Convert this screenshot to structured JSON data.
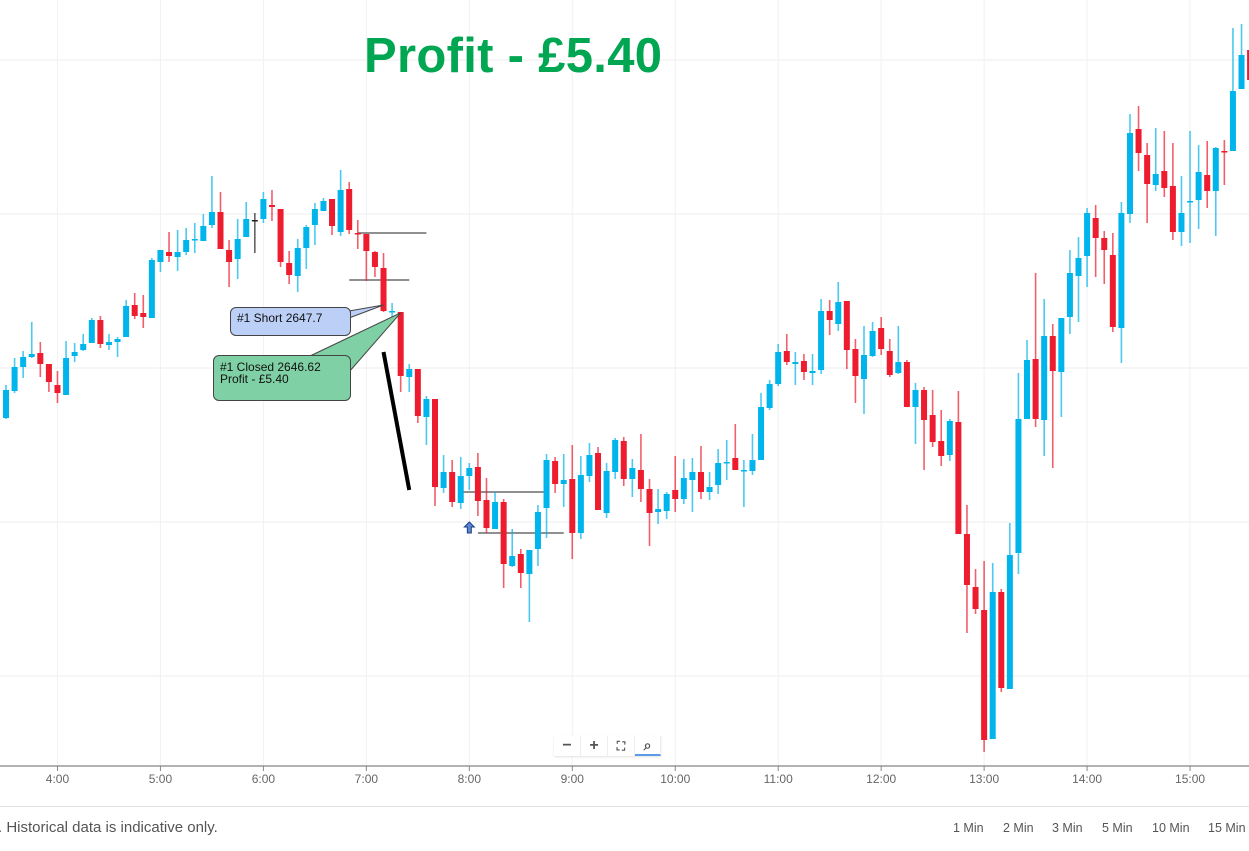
{
  "headline": "Profit - £5.40",
  "colors": {
    "up": "#00b4ec",
    "down": "#ed1c2e",
    "doji": "#222222",
    "headline": "#00a651",
    "short_callout": "#bcd0f7",
    "closed_callout": "#7fd0a4"
  },
  "callouts": {
    "short": {
      "text": "#1 Short 2647.7"
    },
    "closed": {
      "line1": "#1 Closed 2646.62",
      "line2": "Profit - £5.40"
    }
  },
  "zoom_controls": [
    {
      "name": "zoom-out-button",
      "icon": "minus-icon",
      "glyph": "−"
    },
    {
      "name": "zoom-in-button",
      "icon": "plus-icon",
      "glyph": "+"
    },
    {
      "name": "fit-button",
      "icon": "fullscreen-icon",
      "glyph": "⛶"
    },
    {
      "name": "zoom-reset-button",
      "icon": "magnifier-icon",
      "glyph": "⌕"
    }
  ],
  "footer": {
    "disclaimer": ". Historical data is indicative only.",
    "timeframes": [
      "1 Min",
      "2 Min",
      "3 Min",
      "5 Min",
      "10 Min",
      "15 Min"
    ]
  },
  "chart_data": {
    "type": "candlestick",
    "interval": "5 Min",
    "x_ticks": [
      "4:00",
      "5:00",
      "6:00",
      "7:00",
      "8:00",
      "9:00",
      "10:00",
      "11:00",
      "12:00",
      "13:00",
      "14:00",
      "15:00"
    ],
    "ylim": [
      2601.6,
      2678.2
    ],
    "grid": true,
    "y_gridlines": [
      2672.2,
      2656.8,
      2641.4,
      2626.0,
      2610.6
    ],
    "candle_fields": [
      "time",
      "open",
      "high",
      "low",
      "close"
    ],
    "candles": [
      [
        "3:30",
        2636.4,
        2639.7,
        2636.3,
        2639.2
      ],
      [
        "3:35",
        2639.1,
        2642.4,
        2638.9,
        2641.5
      ],
      [
        "3:40",
        2641.5,
        2643.1,
        2640.4,
        2642.5
      ],
      [
        "3:45",
        2642.5,
        2646.0,
        2642.4,
        2642.8
      ],
      [
        "3:50",
        2642.9,
        2644.0,
        2640.5,
        2641.8
      ],
      [
        "3:55",
        2641.8,
        2641.8,
        2639.0,
        2640.0
      ],
      [
        "4:00",
        2639.7,
        2641.1,
        2637.9,
        2638.9
      ],
      [
        "4:05",
        2638.7,
        2644.1,
        2638.7,
        2642.4
      ],
      [
        "4:10",
        2642.6,
        2643.9,
        2642.0,
        2643.0
      ],
      [
        "4:15",
        2643.2,
        2644.8,
        2643.1,
        2643.8
      ],
      [
        "4:20",
        2643.9,
        2646.4,
        2643.9,
        2646.2
      ],
      [
        "4:25",
        2646.2,
        2646.6,
        2643.4,
        2643.8
      ],
      [
        "4:30",
        2643.7,
        2644.8,
        2643.2,
        2644.0
      ],
      [
        "4:35",
        2644.0,
        2644.5,
        2642.5,
        2644.3
      ],
      [
        "4:40",
        2644.5,
        2648.2,
        2644.5,
        2647.6
      ],
      [
        "4:45",
        2647.7,
        2648.9,
        2646.3,
        2646.6
      ],
      [
        "4:50",
        2646.9,
        2648.7,
        2645.4,
        2646.5
      ],
      [
        "4:55",
        2646.4,
        2652.4,
        2646.4,
        2652.2
      ],
      [
        "5:00",
        2652.0,
        2653.2,
        2651.0,
        2653.2
      ],
      [
        "5:05",
        2653.0,
        2655.0,
        2652.0,
        2652.6
      ],
      [
        "5:10",
        2652.5,
        2655.2,
        2651.1,
        2653.0
      ],
      [
        "5:15",
        2653.0,
        2655.4,
        2652.7,
        2654.2
      ],
      [
        "5:20",
        2654.2,
        2655.9,
        2652.9,
        2654.3
      ],
      [
        "5:25",
        2654.1,
        2656.8,
        2654.1,
        2655.6
      ],
      [
        "5:30",
        2655.7,
        2660.6,
        2655.4,
        2657.0
      ],
      [
        "5:35",
        2657.0,
        2659.0,
        2653.3,
        2653.3
      ],
      [
        "5:40",
        2653.2,
        2654.2,
        2649.5,
        2652.0
      ],
      [
        "5:45",
        2652.3,
        2656.3,
        2650.3,
        2654.3
      ],
      [
        "5:50",
        2654.5,
        2658.0,
        2654.5,
        2656.3
      ],
      [
        "5:55",
        2656.2,
        2656.9,
        2652.9,
        2656.2
      ],
      [
        "6:00",
        2656.3,
        2659.0,
        2655.9,
        2658.3
      ],
      [
        "6:05",
        2657.7,
        2659.2,
        2656.1,
        2657.5
      ],
      [
        "6:10",
        2657.3,
        2657.3,
        2651.5,
        2652.0
      ],
      [
        "6:15",
        2651.9,
        2653.1,
        2649.8,
        2650.7
      ],
      [
        "6:20",
        2650.6,
        2654.3,
        2649.0,
        2653.4
      ],
      [
        "6:25",
        2653.4,
        2655.7,
        2651.3,
        2655.5
      ],
      [
        "6:30",
        2655.7,
        2657.9,
        2653.7,
        2657.3
      ],
      [
        "6:35",
        2657.1,
        2658.4,
        2657.1,
        2658.1
      ],
      [
        "6:40",
        2658.3,
        2658.3,
        2654.7,
        2655.6
      ],
      [
        "6:45",
        2655.0,
        2661.2,
        2654.6,
        2659.2
      ],
      [
        "6:50",
        2659.3,
        2660.0,
        2654.8,
        2655.2
      ],
      [
        "6:55",
        2654.9,
        2656.2,
        2653.3,
        2654.8
      ],
      [
        "7:00",
        2654.8,
        2654.8,
        2650.1,
        2653.1
      ],
      [
        "7:05",
        2653.0,
        2653.1,
        2650.5,
        2651.5
      ],
      [
        "7:10",
        2651.4,
        2652.9,
        2647.0,
        2647.1
      ],
      [
        "7:15",
        2647.0,
        2647.9,
        2645.9,
        2647.1
      ],
      [
        "7:20",
        2647.0,
        2647.0,
        2639.0,
        2640.6
      ],
      [
        "7:25",
        2640.5,
        2641.8,
        2639.0,
        2641.3
      ],
      [
        "7:30",
        2641.3,
        2641.3,
        2635.9,
        2636.6
      ],
      [
        "7:35",
        2636.5,
        2638.6,
        2633.7,
        2638.3
      ],
      [
        "7:40",
        2638.3,
        2638.3,
        2627.6,
        2629.5
      ],
      [
        "7:45",
        2629.4,
        2632.7,
        2628.9,
        2631.0
      ],
      [
        "7:50",
        2631.0,
        2632.2,
        2627.5,
        2628.0
      ],
      [
        "7:55",
        2627.9,
        2632.5,
        2627.3,
        2630.6
      ],
      [
        "8:00",
        2630.6,
        2631.9,
        2629.2,
        2631.4
      ],
      [
        "8:05",
        2631.5,
        2632.9,
        2626.6,
        2628.1
      ],
      [
        "8:10",
        2628.2,
        2630.4,
        2624.9,
        2625.4
      ],
      [
        "8:15",
        2625.3,
        2629.0,
        2625.3,
        2628.0
      ],
      [
        "8:20",
        2628.0,
        2628.3,
        2619.4,
        2621.8
      ],
      [
        "8:25",
        2621.6,
        2625.3,
        2621.5,
        2622.6
      ],
      [
        "8:30",
        2622.8,
        2623.3,
        2619.4,
        2620.9
      ],
      [
        "8:35",
        2620.8,
        2623.2,
        2616.0,
        2623.2
      ],
      [
        "8:40",
        2623.3,
        2627.7,
        2621.6,
        2627.0
      ],
      [
        "8:45",
        2627.4,
        2632.8,
        2624.4,
        2632.2
      ],
      [
        "8:50",
        2632.1,
        2632.5,
        2628.9,
        2629.8
      ],
      [
        "8:55",
        2629.8,
        2632.8,
        2627.5,
        2630.2
      ],
      [
        "9:00",
        2630.3,
        2633.7,
        2622.3,
        2624.9
      ],
      [
        "9:05",
        2624.9,
        2632.6,
        2624.3,
        2630.7
      ],
      [
        "9:10",
        2630.6,
        2633.9,
        2630.0,
        2632.7
      ],
      [
        "9:15",
        2632.9,
        2633.5,
        2627.2,
        2627.2
      ],
      [
        "9:20",
        2626.9,
        2631.9,
        2626.4,
        2631.1
      ],
      [
        "9:25",
        2631.0,
        2634.4,
        2630.3,
        2634.2
      ],
      [
        "9:30",
        2634.1,
        2634.5,
        2629.6,
        2630.3
      ],
      [
        "9:35",
        2630.3,
        2632.3,
        2628.5,
        2631.4
      ],
      [
        "9:40",
        2631.2,
        2634.8,
        2628.0,
        2629.3
      ],
      [
        "9:45",
        2629.3,
        2630.3,
        2623.6,
        2626.9
      ],
      [
        "9:50",
        2627.0,
        2629.3,
        2625.8,
        2627.3
      ],
      [
        "9:55",
        2627.1,
        2629.0,
        2626.3,
        2628.8
      ],
      [
        "10:00",
        2629.2,
        2632.6,
        2627.0,
        2628.3
      ],
      [
        "10:05",
        2628.3,
        2632.3,
        2627.8,
        2630.4
      ],
      [
        "10:10",
        2630.2,
        2632.4,
        2627.0,
        2631.0
      ],
      [
        "10:15",
        2631.0,
        2633.6,
        2628.3,
        2629.0
      ],
      [
        "10:20",
        2629.0,
        2631.0,
        2628.2,
        2629.5
      ],
      [
        "10:25",
        2629.7,
        2633.3,
        2628.8,
        2631.9
      ],
      [
        "10:30",
        2631.9,
        2634.2,
        2630.2,
        2632.0
      ],
      [
        "10:35",
        2632.4,
        2635.8,
        2631.2,
        2631.2
      ],
      [
        "10:40",
        2631.1,
        2632.2,
        2627.5,
        2631.2
      ],
      [
        "10:45",
        2631.1,
        2634.8,
        2630.7,
        2632.2
      ],
      [
        "10:50",
        2632.2,
        2638.9,
        2632.2,
        2637.5
      ],
      [
        "10:55",
        2637.4,
        2640.2,
        2637.2,
        2639.8
      ],
      [
        "11:00",
        2639.8,
        2643.8,
        2639.6,
        2643.0
      ],
      [
        "11:05",
        2643.1,
        2644.8,
        2641.7,
        2642.0
      ],
      [
        "11:10",
        2641.8,
        2643.0,
        2639.7,
        2642.0
      ],
      [
        "11:15",
        2642.1,
        2642.8,
        2640.2,
        2641.0
      ],
      [
        "11:20",
        2640.9,
        2642.8,
        2639.7,
        2641.1
      ],
      [
        "11:25",
        2641.2,
        2648.3,
        2640.8,
        2647.1
      ],
      [
        "11:30",
        2647.1,
        2648.2,
        2644.7,
        2646.2
      ],
      [
        "11:35",
        2645.8,
        2650.0,
        2645.1,
        2648.0
      ],
      [
        "11:40",
        2648.1,
        2648.1,
        2641.3,
        2643.2
      ],
      [
        "11:45",
        2643.3,
        2644.3,
        2637.9,
        2640.6
      ],
      [
        "11:50",
        2640.3,
        2645.6,
        2636.8,
        2642.7
      ],
      [
        "11:55",
        2642.6,
        2646.0,
        2642.5,
        2645.1
      ],
      [
        "12:00",
        2645.4,
        2646.5,
        2642.7,
        2643.3
      ],
      [
        "12:05",
        2643.1,
        2644.3,
        2640.5,
        2640.7
      ],
      [
        "12:10",
        2640.9,
        2645.6,
        2640.8,
        2642.0
      ],
      [
        "12:15",
        2642.0,
        2642.2,
        2637.5,
        2637.5
      ],
      [
        "12:20",
        2637.5,
        2639.9,
        2633.8,
        2639.2
      ],
      [
        "12:25",
        2639.2,
        2639.5,
        2631.2,
        2636.2
      ],
      [
        "12:30",
        2636.7,
        2639.2,
        2633.5,
        2634.0
      ],
      [
        "12:35",
        2634.1,
        2637.2,
        2631.6,
        2632.6
      ],
      [
        "12:40",
        2632.7,
        2636.3,
        2632.1,
        2636.1
      ],
      [
        "12:45",
        2636.0,
        2639.1,
        2624.8,
        2624.8
      ],
      [
        "12:50",
        2624.8,
        2627.7,
        2614.9,
        2619.7
      ],
      [
        "12:55",
        2619.5,
        2621.3,
        2616.8,
        2617.3
      ],
      [
        "13:00",
        2617.2,
        2622.1,
        2603.0,
        2604.2
      ],
      [
        "13:05",
        2604.3,
        2621.9,
        2604.3,
        2619.0
      ],
      [
        "13:10",
        2619.0,
        2619.3,
        2609.0,
        2609.4
      ],
      [
        "13:15",
        2609.3,
        2625.9,
        2609.3,
        2622.7
      ],
      [
        "13:20",
        2622.9,
        2640.9,
        2620.8,
        2636.3
      ],
      [
        "13:25",
        2636.3,
        2644.2,
        2636.3,
        2642.2
      ],
      [
        "13:30",
        2642.3,
        2650.9,
        2635.5,
        2636.3
      ],
      [
        "13:35",
        2636.2,
        2648.3,
        2632.6,
        2644.6
      ],
      [
        "13:40",
        2644.6,
        2645.8,
        2631.4,
        2641.1
      ],
      [
        "13:45",
        2641.0,
        2646.4,
        2636.5,
        2646.4
      ],
      [
        "13:50",
        2646.5,
        2653.2,
        2644.8,
        2650.9
      ],
      [
        "13:55",
        2650.6,
        2654.5,
        2646.0,
        2652.4
      ],
      [
        "14:00",
        2652.6,
        2657.4,
        2649.5,
        2656.9
      ],
      [
        "14:05",
        2656.4,
        2657.7,
        2650.5,
        2654.4
      ],
      [
        "14:10",
        2654.4,
        2655.1,
        2649.8,
        2653.2
      ],
      [
        "14:15",
        2652.7,
        2654.9,
        2645.0,
        2645.5
      ],
      [
        "14:20",
        2645.4,
        2658.0,
        2641.9,
        2656.9
      ],
      [
        "14:25",
        2656.8,
        2666.8,
        2655.9,
        2664.9
      ],
      [
        "14:30",
        2665.3,
        2667.6,
        2661.1,
        2662.9
      ],
      [
        "14:35",
        2662.7,
        2663.9,
        2655.9,
        2659.8
      ],
      [
        "14:40",
        2659.7,
        2665.4,
        2659.1,
        2660.8
      ],
      [
        "14:45",
        2661.1,
        2665.1,
        2658.5,
        2659.4
      ],
      [
        "14:50",
        2659.6,
        2663.9,
        2654.2,
        2655.0
      ],
      [
        "14:55",
        2655.0,
        2660.6,
        2653.6,
        2656.9
      ],
      [
        "15:00",
        2658.0,
        2665.1,
        2653.9,
        2658.1
      ],
      [
        "15:05",
        2658.2,
        2663.7,
        2655.3,
        2661.0
      ],
      [
        "15:10",
        2660.7,
        2664.1,
        2657.4,
        2659.1
      ],
      [
        "15:15",
        2659.1,
        2663.5,
        2654.6,
        2663.4
      ],
      [
        "15:20",
        2663.1,
        2664.2,
        2659.7,
        2663.0
      ],
      [
        "15:25",
        2663.1,
        2675.4,
        2663.1,
        2669.1
      ],
      [
        "15:30",
        2669.3,
        2675.8,
        2669.3,
        2672.7
      ],
      [
        "15:35",
        2673.2,
        2674.2,
        2666.7,
        2670.2
      ]
    ],
    "level_lines": [
      {
        "from": "6:55",
        "to": "7:35",
        "price": 2654.9
      },
      {
        "from": "6:50",
        "to": "7:25",
        "price": 2650.2
      },
      {
        "from": "7:55",
        "to": "8:45",
        "price": 2629.0
      },
      {
        "from": "8:05",
        "to": "8:55",
        "price": 2624.9
      }
    ],
    "trend_line": {
      "from": [
        "7:10",
        2643.0
      ],
      "to": [
        "7:25",
        2629.2
      ]
    },
    "markers": [
      {
        "type": "up-arrow",
        "time": "8:00",
        "price": 2625.4
      }
    ],
    "trades": [
      {
        "label": "#1 Short 2647.7",
        "time": "7:10",
        "price": 2647.7
      },
      {
        "label": "#1 Closed 2646.62",
        "time": "7:20",
        "price": 2646.62,
        "profit": "Profit - £5.40"
      }
    ]
  }
}
